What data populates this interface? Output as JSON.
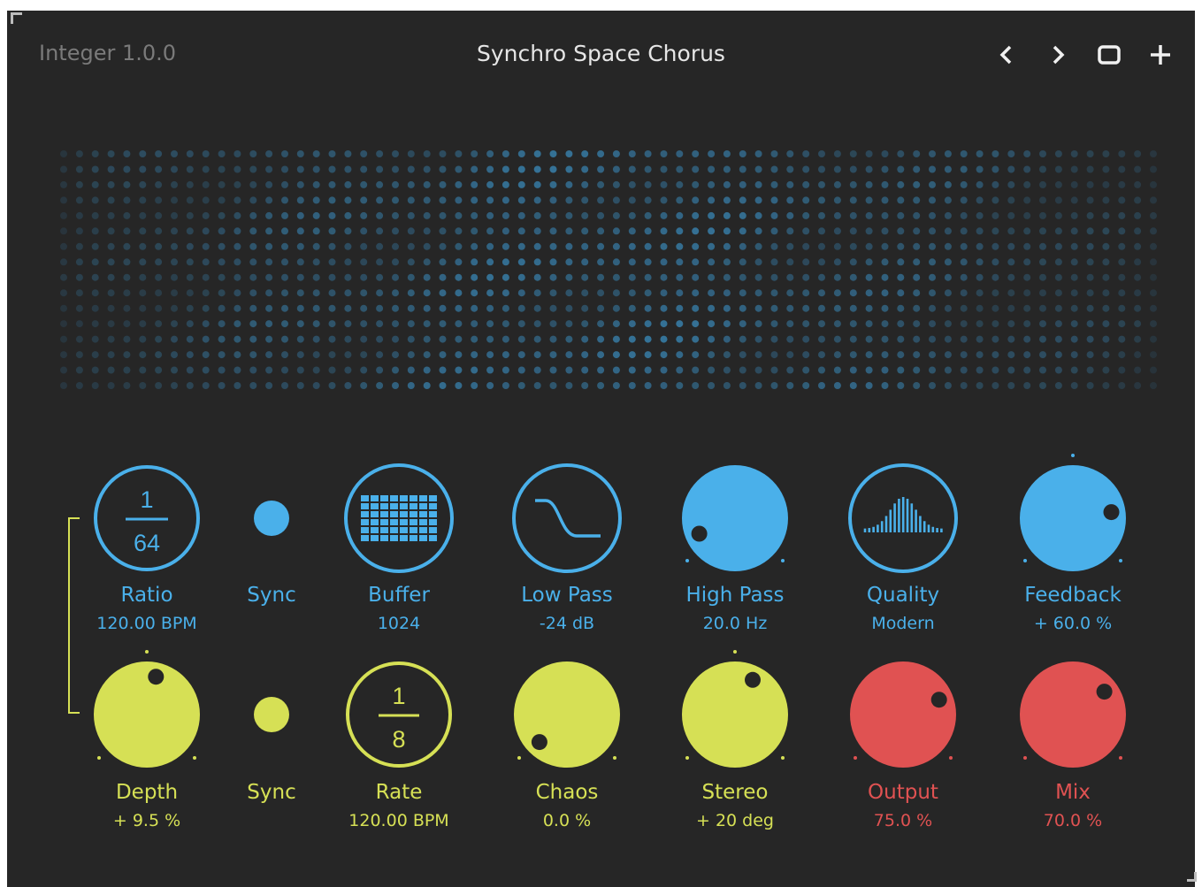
{
  "header": {
    "version": "Integer 1.0.0",
    "title": "Synchro Space Chorus"
  },
  "colors": {
    "background": "#262626",
    "blue": "#4ab0ea",
    "yellow": "#d6e055",
    "red": "#e05252",
    "label_grey": "#7a7a7a"
  },
  "icons": {
    "prev": "chevron-left-icon",
    "next": "chevron-right-icon",
    "window": "square-icon",
    "add": "plus-icon"
  },
  "top_row": {
    "ratio": {
      "label": "Ratio",
      "value": "120.00 BPM",
      "num": "1",
      "den": "64"
    },
    "sync": {
      "label": "Sync"
    },
    "buffer": {
      "label": "Buffer",
      "value": "1024"
    },
    "low_pass": {
      "label": "Low Pass",
      "value": "-24 dB"
    },
    "high_pass": {
      "label": "High Pass",
      "value": "20.0 Hz",
      "level": 0.08
    },
    "quality": {
      "label": "Quality",
      "value": "Modern"
    },
    "feedback": {
      "label": "Feedback",
      "value": "+ 60.0 %",
      "level": 0.8
    }
  },
  "bottom_row": {
    "depth": {
      "label": "Depth",
      "value": "+ 9.5 %",
      "level": 0.55
    },
    "sync": {
      "label": "Sync"
    },
    "rate": {
      "label": "Rate",
      "value": "120.00 BPM",
      "num": "1",
      "den": "8"
    },
    "chaos": {
      "label": "Chaos",
      "value": "0.0 %",
      "level": 0.0
    },
    "stereo": {
      "label": "Stereo",
      "value": "+ 20 deg",
      "level": 0.6
    },
    "output": {
      "label": "Output",
      "value": "75.0 %",
      "level": 0.75
    },
    "mix": {
      "label": "Mix",
      "value": "70.0 %",
      "level": 0.7
    }
  }
}
